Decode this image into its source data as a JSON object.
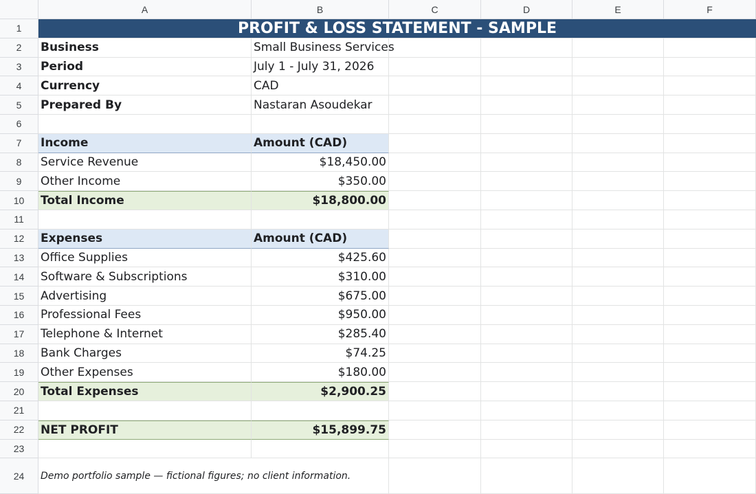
{
  "columns": [
    "A",
    "B",
    "C",
    "D",
    "E",
    "F"
  ],
  "rows": [
    "1",
    "2",
    "3",
    "4",
    "5",
    "6",
    "7",
    "8",
    "9",
    "10",
    "11",
    "12",
    "13",
    "14",
    "15",
    "16",
    "17",
    "18",
    "19",
    "20",
    "21",
    "22",
    "23",
    "24"
  ],
  "title": "PROFIT & LOSS STATEMENT - SAMPLE",
  "info": [
    {
      "label": "Business",
      "value": "Small Business Services"
    },
    {
      "label": "Period",
      "value": "July 1 - July 31, 2026"
    },
    {
      "label": "Currency",
      "value": "CAD"
    },
    {
      "label": "Prepared By",
      "value": "Nastaran Asoudekar"
    }
  ],
  "income": {
    "header": "Income",
    "amount_header": "Amount (CAD)",
    "items": [
      {
        "label": "Service Revenue",
        "amount": "$18,450.00"
      },
      {
        "label": "Other Income",
        "amount": "$350.00"
      }
    ],
    "total_label": "Total Income",
    "total": "$18,800.00"
  },
  "expenses": {
    "header": "Expenses",
    "amount_header": "Amount (CAD)",
    "items": [
      {
        "label": "Office Supplies",
        "amount": "$425.60"
      },
      {
        "label": "Software & Subscriptions",
        "amount": "$310.00"
      },
      {
        "label": "Advertising",
        "amount": "$675.00"
      },
      {
        "label": "Professional Fees",
        "amount": "$950.00"
      },
      {
        "label": "Telephone & Internet",
        "amount": "$285.40"
      },
      {
        "label": "Bank Charges",
        "amount": "$74.25"
      },
      {
        "label": "Other Expenses",
        "amount": "$180.00"
      }
    ],
    "total_label": "Total Expenses",
    "total": "$2,900.25"
  },
  "net_profit": {
    "label": "NET PROFIT",
    "amount": "$15,899.75"
  },
  "footnote": "Demo portfolio sample — fictional figures; no client information.",
  "colors": {
    "title_bg": "#2b4f78",
    "section_header_bg": "#dde8f5",
    "total_bg": "#e6f0dc"
  }
}
